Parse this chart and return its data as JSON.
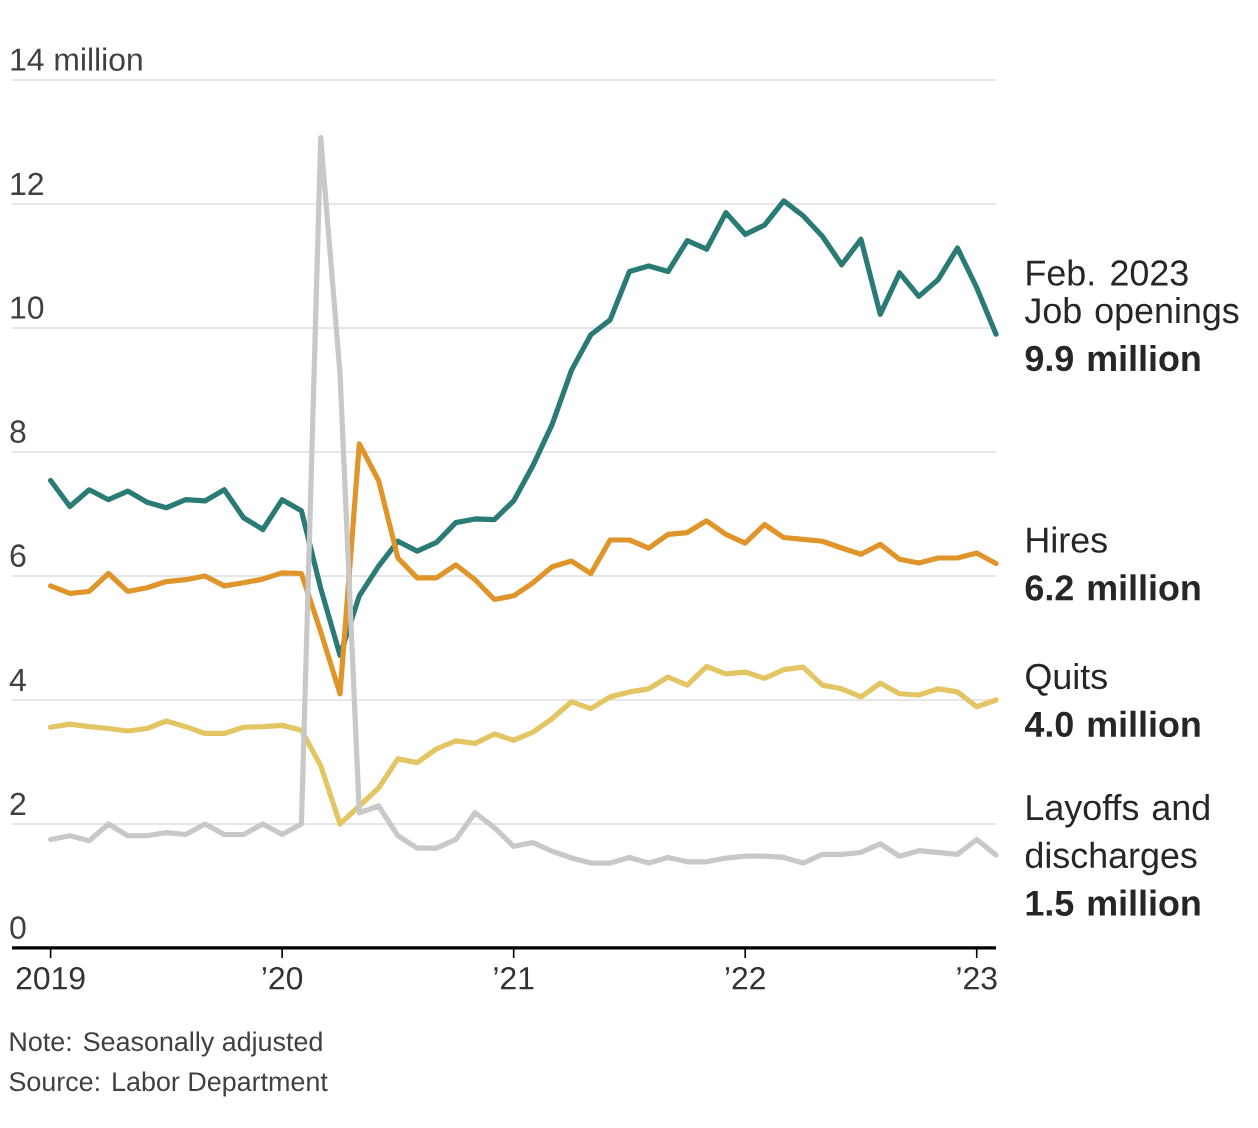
{
  "chart_data": {
    "type": "line",
    "x": [
      "2019-01",
      "2019-02",
      "2019-03",
      "2019-04",
      "2019-05",
      "2019-06",
      "2019-07",
      "2019-08",
      "2019-09",
      "2019-10",
      "2019-11",
      "2019-12",
      "2020-01",
      "2020-02",
      "2020-03",
      "2020-04",
      "2020-05",
      "2020-06",
      "2020-07",
      "2020-08",
      "2020-09",
      "2020-10",
      "2020-11",
      "2020-12",
      "2021-01",
      "2021-02",
      "2021-03",
      "2021-04",
      "2021-05",
      "2021-06",
      "2021-07",
      "2021-08",
      "2021-09",
      "2021-10",
      "2021-11",
      "2021-12",
      "2022-01",
      "2022-02",
      "2022-03",
      "2022-04",
      "2022-05",
      "2022-06",
      "2022-07",
      "2022-08",
      "2022-09",
      "2022-10",
      "2022-11",
      "2022-12",
      "2023-01",
      "2023-02"
    ],
    "series": [
      {
        "name": "Job openings",
        "color": "#2a7b75",
        "values": [
          7.54,
          7.12,
          7.39,
          7.23,
          7.37,
          7.19,
          7.1,
          7.23,
          7.21,
          7.39,
          6.94,
          6.75,
          7.23,
          7.05,
          5.8,
          4.72,
          5.68,
          6.16,
          6.56,
          6.4,
          6.54,
          6.86,
          6.92,
          6.91,
          7.21,
          7.78,
          8.45,
          9.32,
          9.89,
          10.13,
          10.91,
          11.0,
          10.91,
          11.41,
          11.27,
          11.86,
          11.51,
          11.66,
          12.05,
          11.81,
          11.48,
          11.02,
          11.43,
          10.22,
          10.89,
          10.51,
          10.78,
          11.29,
          10.65,
          9.9
        ],
        "value_labels": [
          null,
          null,
          null,
          null,
          null,
          null,
          null,
          null,
          null,
          null,
          null,
          null,
          null,
          null,
          null,
          null,
          null,
          null,
          null,
          null,
          null,
          null,
          null,
          null,
          null,
          null,
          null,
          null,
          null,
          null,
          null,
          null,
          null,
          null,
          null,
          null,
          null,
          null,
          null,
          null,
          null,
          null,
          null,
          null,
          null,
          null,
          null,
          null,
          null,
          "9.9 million"
        ]
      },
      {
        "name": "Hires",
        "color": "#e0952b",
        "values": [
          5.84,
          5.72,
          5.75,
          6.04,
          5.75,
          5.81,
          5.91,
          5.94,
          6.0,
          5.84,
          5.89,
          5.95,
          6.05,
          6.04,
          5.1,
          4.1,
          8.13,
          7.54,
          6.29,
          5.97,
          5.97,
          6.18,
          5.94,
          5.62,
          5.68,
          5.89,
          6.15,
          6.24,
          6.04,
          6.58,
          6.58,
          6.45,
          6.67,
          6.7,
          6.89,
          6.67,
          6.53,
          6.83,
          6.62,
          6.59,
          6.56,
          6.45,
          6.35,
          6.51,
          6.27,
          6.21,
          6.29,
          6.29,
          6.37,
          6.2
        ],
        "value_labels": [
          null,
          null,
          null,
          null,
          null,
          null,
          null,
          null,
          null,
          null,
          null,
          null,
          null,
          null,
          null,
          null,
          null,
          null,
          null,
          null,
          null,
          null,
          null,
          null,
          null,
          null,
          null,
          null,
          null,
          null,
          null,
          null,
          null,
          null,
          null,
          null,
          null,
          null,
          null,
          null,
          null,
          null,
          null,
          null,
          null,
          null,
          null,
          null,
          null,
          "6.2 million"
        ]
      },
      {
        "name": "Quits",
        "color": "#e3c564",
        "values": [
          3.56,
          3.61,
          3.57,
          3.54,
          3.5,
          3.54,
          3.66,
          3.57,
          3.46,
          3.46,
          3.56,
          3.57,
          3.59,
          3.51,
          2.94,
          2.0,
          2.29,
          2.58,
          3.05,
          2.99,
          3.21,
          3.34,
          3.3,
          3.45,
          3.35,
          3.48,
          3.7,
          3.97,
          3.86,
          4.05,
          4.13,
          4.18,
          4.37,
          4.24,
          4.54,
          4.42,
          4.45,
          4.35,
          4.49,
          4.53,
          4.24,
          4.18,
          4.05,
          4.27,
          4.1,
          4.08,
          4.18,
          4.13,
          3.89,
          4.0
        ],
        "value_labels": [
          null,
          null,
          null,
          null,
          null,
          null,
          null,
          null,
          null,
          null,
          null,
          null,
          null,
          null,
          null,
          null,
          null,
          null,
          null,
          null,
          null,
          null,
          null,
          null,
          null,
          null,
          null,
          null,
          null,
          null,
          null,
          null,
          null,
          null,
          null,
          null,
          null,
          null,
          null,
          null,
          null,
          null,
          null,
          null,
          null,
          null,
          null,
          null,
          null,
          "4.0 million"
        ]
      },
      {
        "name": "Layoffs and discharges",
        "color": "#c8c8c8",
        "values": [
          1.75,
          1.81,
          1.73,
          2.0,
          1.81,
          1.81,
          1.86,
          1.83,
          2.0,
          1.83,
          1.83,
          2.0,
          1.83,
          2.0,
          13.07,
          9.26,
          2.18,
          2.29,
          1.81,
          1.61,
          1.61,
          1.75,
          2.18,
          1.94,
          1.64,
          1.7,
          1.56,
          1.45,
          1.37,
          1.37,
          1.46,
          1.37,
          1.46,
          1.39,
          1.39,
          1.45,
          1.48,
          1.48,
          1.46,
          1.37,
          1.51,
          1.51,
          1.54,
          1.68,
          1.48,
          1.57,
          1.54,
          1.51,
          1.75,
          1.5
        ],
        "value_labels": [
          null,
          null,
          null,
          null,
          null,
          null,
          null,
          null,
          null,
          null,
          null,
          null,
          null,
          null,
          null,
          null,
          null,
          null,
          null,
          null,
          null,
          null,
          null,
          null,
          null,
          null,
          null,
          null,
          null,
          null,
          null,
          null,
          null,
          null,
          null,
          null,
          null,
          null,
          null,
          null,
          null,
          null,
          null,
          null,
          null,
          null,
          null,
          null,
          null,
          "1.5 million"
        ]
      }
    ],
    "xlim": [
      "2018-11",
      "2023-02"
    ],
    "xticks": [
      {
        "value": "2019",
        "label": "2019"
      },
      {
        "value": "2020",
        "label": "’20"
      },
      {
        "value": "2021",
        "label": "’21"
      },
      {
        "value": "2022",
        "label": "’22"
      },
      {
        "value": "2023",
        "label": "’23"
      }
    ],
    "ylim": [
      0,
      14
    ],
    "yticks": [
      0,
      2,
      4,
      6,
      8,
      10,
      12,
      {
        "value": 14,
        "label": "14 million"
      }
    ],
    "grid": "y",
    "marker": "none",
    "line_style": "solid",
    "annotations": [
      {
        "text": "Feb. 2023",
        "x": "2023-02",
        "y": 9.9
      },
      "Note: Seasonally adjusted",
      "Source: Labor Department"
    ]
  }
}
